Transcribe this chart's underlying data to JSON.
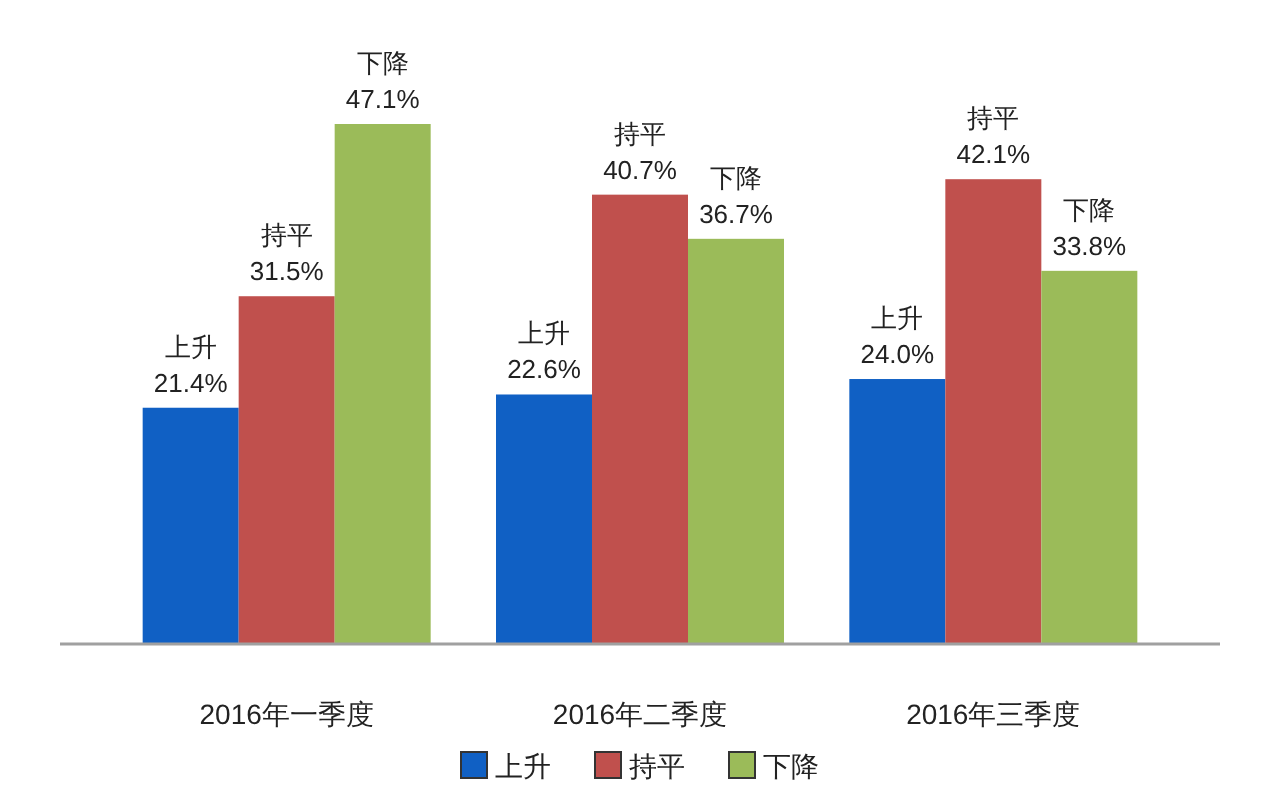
{
  "chart_data": {
    "type": "bar",
    "categories": [
      "2016年一季度",
      "2016年二季度",
      "2016年三季度"
    ],
    "series": [
      {
        "name": "上升",
        "color": "#1060c4",
        "values": [
          21.4,
          22.6,
          24.0
        ],
        "value_labels": [
          "21.4%",
          "22.6%",
          "24.0%"
        ]
      },
      {
        "name": "持平",
        "color": "#c0504d",
        "values": [
          31.5,
          40.7,
          42.1
        ],
        "value_labels": [
          "31.5%",
          "40.7%",
          "42.1%"
        ]
      },
      {
        "name": "下降",
        "color": "#9bbb59",
        "values": [
          47.1,
          36.7,
          33.8
        ],
        "value_labels": [
          "47.1%",
          "36.7%",
          "33.8%"
        ]
      }
    ],
    "legend": "bottom"
  }
}
